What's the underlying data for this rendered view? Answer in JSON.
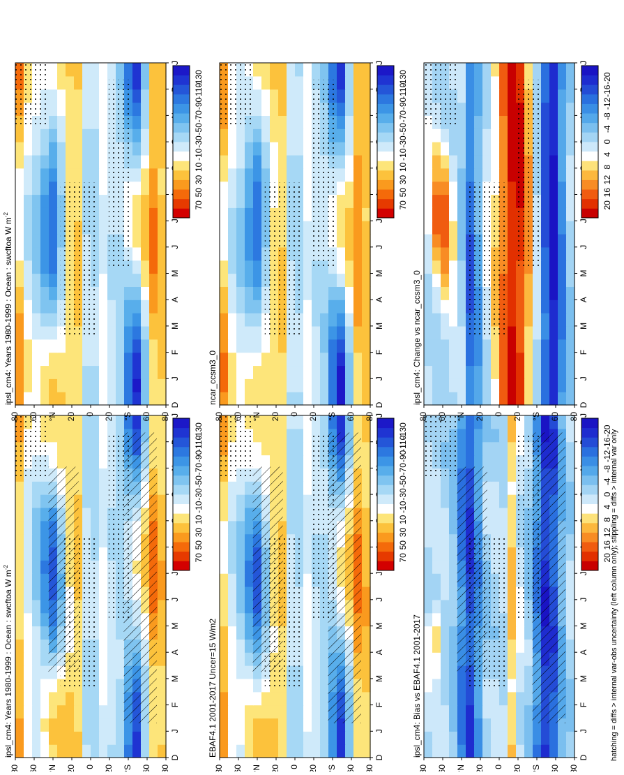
{
  "figure": {
    "footnote": "hatching = diffs > internal var-obs uncertainty (left column only); stippling = diffs > internal var only"
  },
  "chart_data": [
    {
      "type": "heatmap",
      "id": "left-top",
      "title": "ipsl_cm4: Years 1980-1999 : Ocean : swcftoa W m",
      "title_sup": "-2",
      "x_ticks": [
        "D",
        "J",
        "F",
        "M",
        "A",
        "M",
        "J",
        "J",
        "A",
        "S",
        "O",
        "N",
        "D",
        "J"
      ],
      "y_ticks": [
        "80",
        "60",
        "°N",
        "20",
        "0",
        "20",
        "°S",
        "60",
        "80"
      ],
      "colorbar_ticks": [
        "70",
        "50",
        "30",
        "10",
        "-10",
        "-30",
        "-50",
        "-70",
        "-90",
        "-110",
        "-130"
      ],
      "overlay": "stipple+hatch"
    },
    {
      "type": "heatmap",
      "id": "left-middle",
      "title": "EBAF4.1 2001-2017 Uncer=15 W/m2",
      "title_sup": "",
      "x_ticks": [
        "D",
        "J",
        "F",
        "M",
        "A",
        "M",
        "J",
        "J",
        "A",
        "S",
        "O",
        "N",
        "D",
        "J"
      ],
      "y_ticks": [
        "80",
        "60",
        "°N",
        "20",
        "0",
        "20",
        "°S",
        "60",
        "80"
      ],
      "colorbar_ticks": [
        "70",
        "50",
        "30",
        "10",
        "-10",
        "-30",
        "-50",
        "-70",
        "-90",
        "-110",
        "-130"
      ],
      "overlay": "stipple+hatch"
    },
    {
      "type": "heatmap",
      "id": "left-bottom",
      "title": "ipsl_cm4: Bias vs EBAF4.1 2001-2017",
      "title_sup": "",
      "x_ticks": [
        "D",
        "J",
        "F",
        "M",
        "A",
        "M",
        "J",
        "J",
        "A",
        "S",
        "O",
        "N",
        "D",
        "J"
      ],
      "y_ticks": [
        "80",
        "60",
        "°N",
        "20",
        "0",
        "20",
        "°S",
        "60",
        "80"
      ],
      "colorbar_ticks": [
        "20",
        "16",
        "12",
        "8",
        "4",
        "0",
        "-4",
        "-8",
        "-12",
        "-16",
        "-20"
      ],
      "overlay": "stipple+hatch"
    },
    {
      "type": "heatmap",
      "id": "right-top",
      "title": "ipsl_cm4: Years 1980-1999 : Ocean : swcftoa W m",
      "title_sup": "-2",
      "x_ticks": [
        "D",
        "J",
        "F",
        "M",
        "A",
        "M",
        "J",
        "J",
        "A",
        "S",
        "O",
        "N",
        "D",
        "J"
      ],
      "y_ticks": [
        "80",
        "60",
        "°N",
        "20",
        "0",
        "20",
        "°S",
        "60",
        "80"
      ],
      "colorbar_ticks": [
        "70",
        "50",
        "30",
        "10",
        "-10",
        "-30",
        "-50",
        "-70",
        "-90",
        "-110",
        "-130"
      ],
      "overlay": "stipple"
    },
    {
      "type": "heatmap",
      "id": "right-middle",
      "title": "ncar_ccsm3_0",
      "title_sup": "",
      "x_ticks": [
        "D",
        "J",
        "F",
        "M",
        "A",
        "M",
        "J",
        "J",
        "A",
        "S",
        "O",
        "N",
        "D",
        "J"
      ],
      "y_ticks": [
        "80",
        "60",
        "°N",
        "20",
        "0",
        "20",
        "°S",
        "60",
        "80"
      ],
      "colorbar_ticks": [
        "70",
        "50",
        "30",
        "10",
        "-10",
        "-30",
        "-50",
        "-70",
        "-90",
        "-110",
        "-130"
      ],
      "overlay": "stipple"
    },
    {
      "type": "heatmap",
      "id": "right-bottom",
      "title": "ipsl_cm4: Change vs ncar_ccsm3_0",
      "title_sup": "",
      "x_ticks": [
        "D",
        "J",
        "F",
        "M",
        "A",
        "M",
        "J",
        "J",
        "A",
        "S",
        "O",
        "N",
        "D",
        "J"
      ],
      "y_ticks": [
        "80",
        "60",
        "°N",
        "20",
        "0",
        "20",
        "°S",
        "60",
        "80"
      ],
      "colorbar_ticks": [
        "20",
        "16",
        "12",
        "8",
        "4",
        "0",
        "-4",
        "-8",
        "-12",
        "-16",
        "-20"
      ],
      "overlay": "stipple"
    }
  ]
}
